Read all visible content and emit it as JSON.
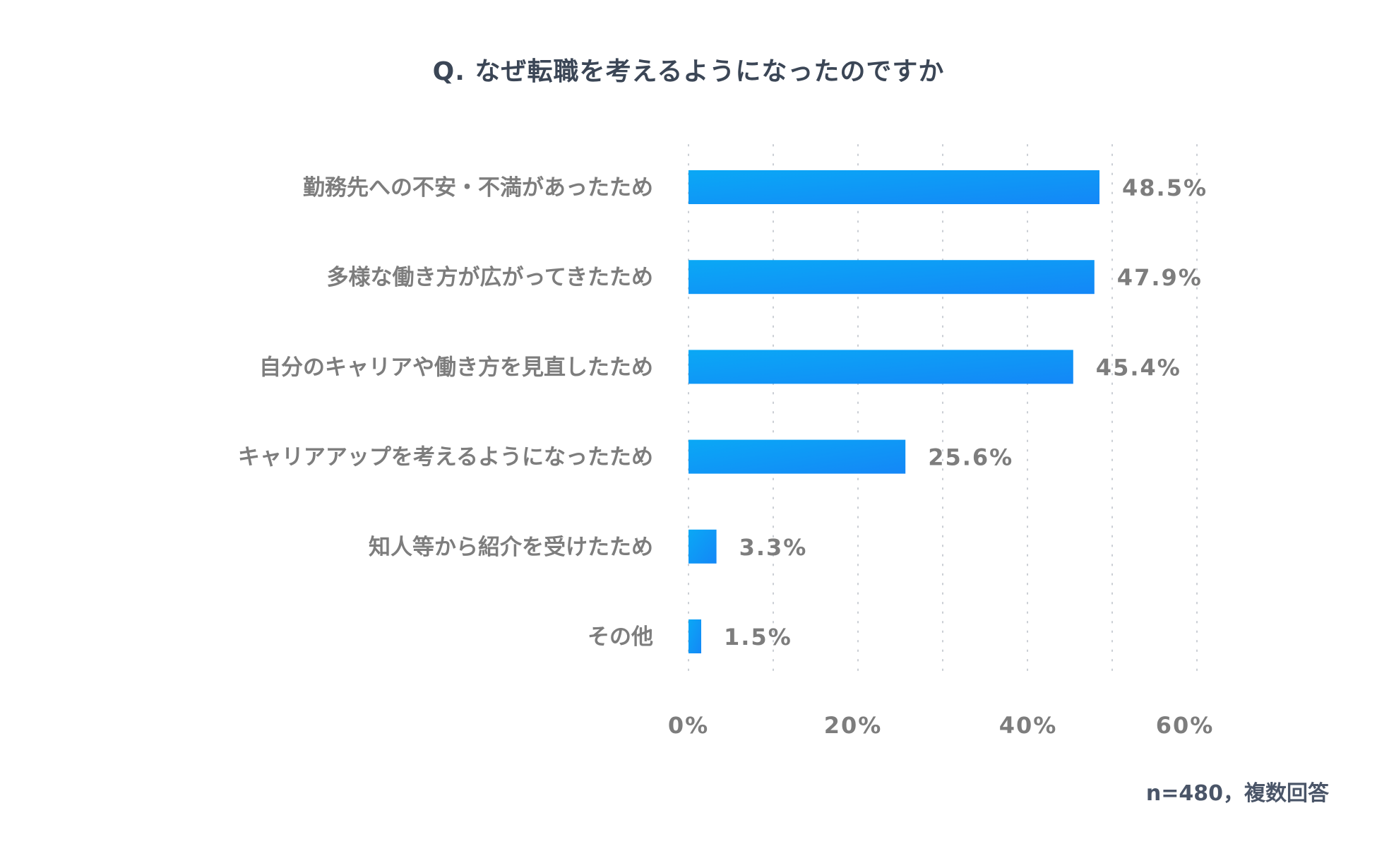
{
  "chart_data": {
    "type": "bar",
    "orientation": "horizontal",
    "title": "Q. なぜ転職を考えるようになったのですか",
    "categories": [
      "勤務先への不安・不満があったため",
      "多様な働き方が広がってきたため",
      "自分のキャリアや働き方を見直したため",
      "キャリアアップを考えるようになったため",
      "知人等から紹介を受けたため",
      "その他"
    ],
    "values": [
      48.5,
      47.9,
      45.4,
      25.6,
      3.3,
      1.5
    ],
    "value_labels": [
      "48.5%",
      "47.9%",
      "45.4%",
      "25.6%",
      "3.3%",
      "1.5%"
    ],
    "xlim": [
      0,
      60
    ],
    "ticks": [
      0,
      20,
      40,
      60
    ],
    "tick_labels": [
      "0%",
      "20%",
      "40%",
      "60%"
    ],
    "grid": true,
    "xlabel": "",
    "ylabel": ""
  },
  "colors": {
    "bar_start": "#0aa8f5",
    "bar_end": "#1487f7",
    "label_text": "#7d7d7d",
    "title_text": "#3b4656",
    "grid": "#c9cdd3"
  },
  "note": "n=480，複数回答"
}
